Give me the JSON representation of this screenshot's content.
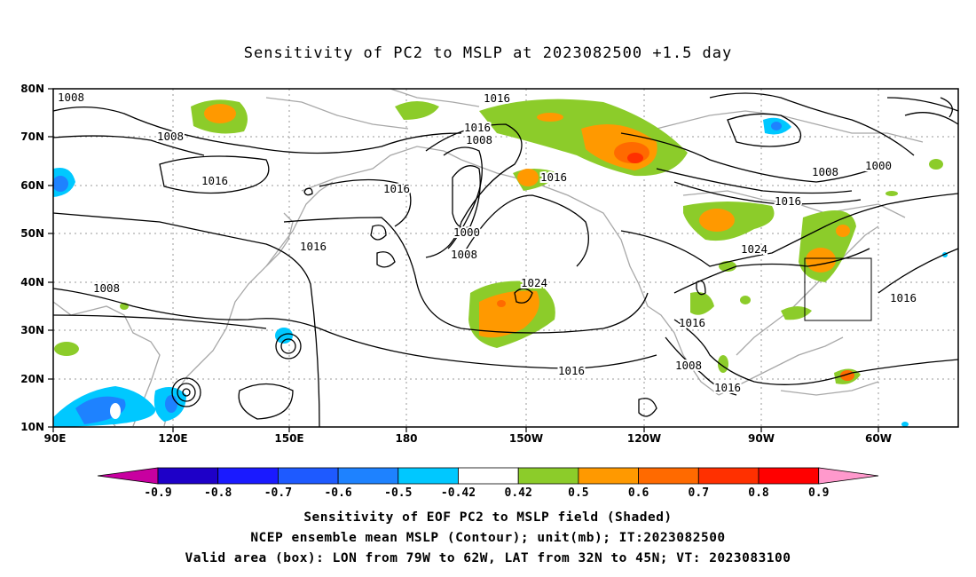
{
  "title": "Sensitivity of PC2 to MSLP at 2023082500 +1.5 day",
  "lat_ticks": [
    "80N",
    "70N",
    "60N",
    "50N",
    "40N",
    "30N",
    "20N",
    "10N"
  ],
  "lon_ticks": [
    "90E",
    "120E",
    "150E",
    "180",
    "150W",
    "120W",
    "90W",
    "60W"
  ],
  "colorbar": {
    "labels": [
      "-0.9",
      "-0.8",
      "-0.7",
      "-0.6",
      "-0.5",
      "-0.42",
      "0.42",
      "0.5",
      "0.6",
      "0.7",
      "0.8",
      "0.9"
    ],
    "colors": [
      "#c800a0",
      "#1e00c8",
      "#1a1aff",
      "#1e5aff",
      "#1e82ff",
      "#00c8ff",
      "#ffffff",
      "#8ccc2a",
      "#ff9900",
      "#ff6a00",
      "#ff3000",
      "#ff0000",
      "#ff99cc"
    ]
  },
  "contour_labels": [
    "1008",
    "1008",
    "1016",
    "1016",
    "1016",
    "1008",
    "1016",
    "1000",
    "1008",
    "1024",
    "1016",
    "1008",
    "1016",
    "1016",
    "1016",
    "1024",
    "1016",
    "1008",
    "1000",
    "1016",
    "1008",
    "1016"
  ],
  "captions": [
    "Sensitivity of EOF PC2 to MSLP field (Shaded)",
    "NCEP ensemble mean MSLP (Contour); unit(mb); IT:2023082500",
    "Valid area (box): LON from 79W to 62W, LAT from 32N to 45N; VT: 2023083100"
  ]
}
